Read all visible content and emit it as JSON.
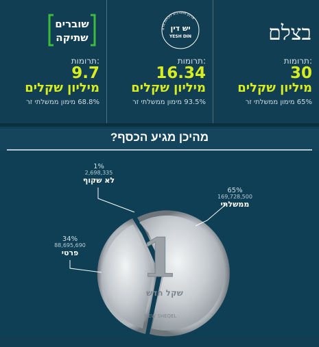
{
  "orgs": [
    {
      "logo_text_1": "בצלם",
      "donations_label": "תרומות:",
      "amount": "30",
      "unit": "מיליון שקלים",
      "gov_funding": "65% מימון ממשלתי זר"
    },
    {
      "logo_text_1": "יש דין",
      "logo_text_2": "YESH DIN",
      "logo_ring_text": "ארגון מתנדבים לזכויות אדם",
      "donations_label": "תרומות:",
      "amount": "16.34",
      "unit": "מיליון שקלים",
      "gov_funding": "93.5% מימון ממשלתי זר"
    },
    {
      "logo_text_1": "שוברים",
      "logo_text_2": "שתיקה",
      "donations_label": "תרומות:",
      "amount": "9.7",
      "unit": "מיליון שקלים",
      "gov_funding": "68.8% מימון ממשלתי זר"
    }
  ],
  "section_title": "מהיכן מגיע הכסף?",
  "breakdown": [
    {
      "pct": "65%",
      "value": "169,728,500",
      "name": "ממשלתי"
    },
    {
      "pct": "34%",
      "value": "88,695,690",
      "name": "פרטי"
    },
    {
      "pct": "1%",
      "value": "2,698,335",
      "name": "לא שקוף"
    }
  ],
  "coin": {
    "digit": "1",
    "word": "שקל חדש",
    "latin": "NEW SHEQEL"
  },
  "colors": {
    "accent": "#d8ec22",
    "background": "#0f3f55",
    "band": "#15455c"
  }
}
